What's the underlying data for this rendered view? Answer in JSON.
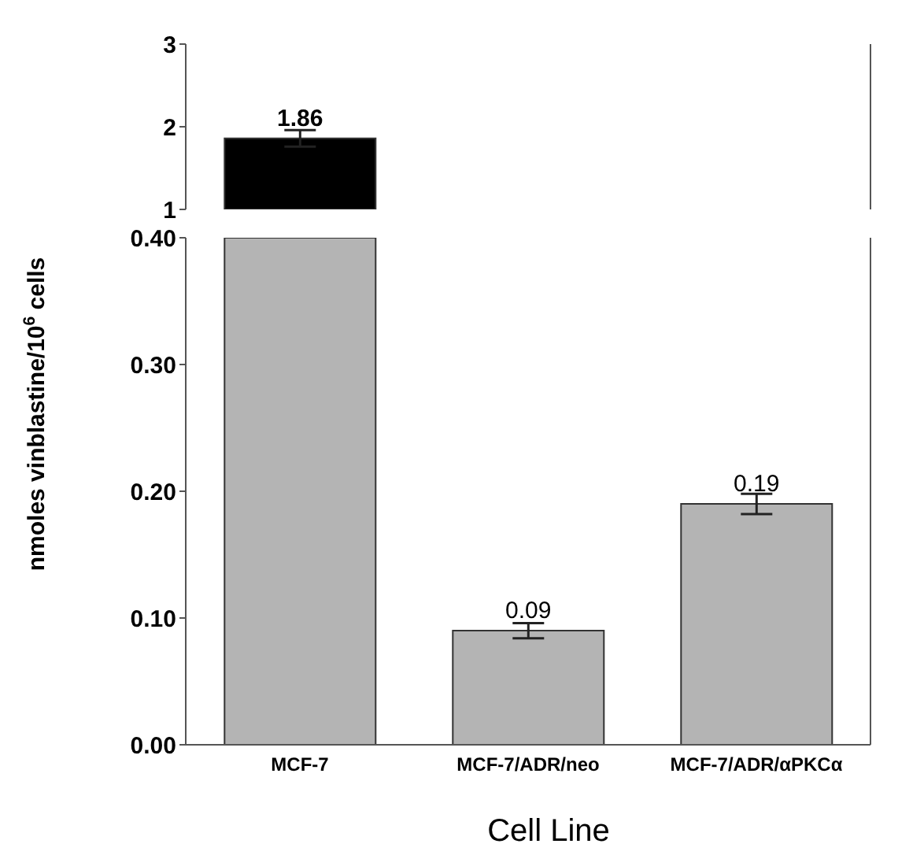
{
  "chart_data": [
    {
      "type": "bar",
      "categories": [
        null
      ],
      "values": [
        1.86
      ],
      "colors": [
        "#000000"
      ],
      "errors": [
        0.1
      ],
      "value_labels": [
        "1.86"
      ],
      "ylim": [
        1,
        3
      ],
      "yticks": [
        1,
        2,
        3
      ],
      "tick_labels": "y"
    },
    {
      "type": "bar",
      "xlabel": "Cell Line",
      "ylabel": "nmoles vinblastine/10$^{6}$ cells",
      "categories": [
        "MCF-7",
        "MCF-7/ADR/neo",
        "MCF-7/ADR/αPKCα"
      ],
      "values": [
        0.4,
        0.09,
        0.19
      ],
      "colors": [
        "#b4b4b4",
        "#b4b4b4",
        "#b4b4b4"
      ],
      "errors": [
        null,
        0.006,
        0.008
      ],
      "value_labels": [
        null,
        "0.09",
        "0.19"
      ],
      "ylim": [
        0,
        0.4
      ],
      "yticks": [
        {
          "value": 0,
          "label": "0.00"
        },
        {
          "value": 0.1,
          "label": "0.10"
        },
        {
          "value": 0.2,
          "label": "0.20"
        },
        {
          "value": 0.3,
          "label": "0.30"
        },
        {
          "value": 0.4,
          "label": "0.40"
        }
      ]
    }
  ]
}
